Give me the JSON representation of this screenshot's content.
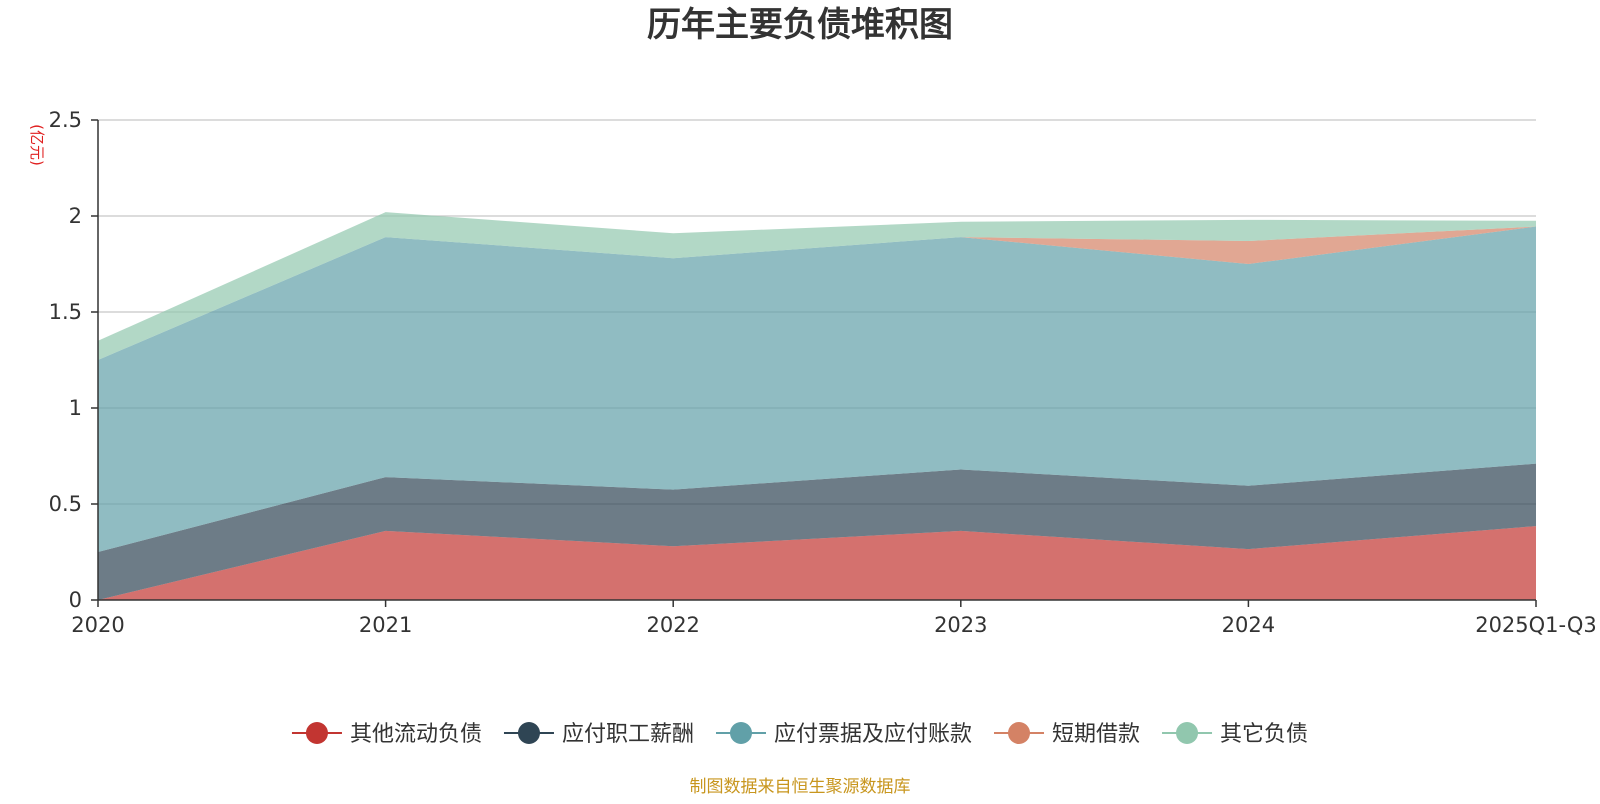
{
  "chart_data": {
    "type": "area",
    "stacked": true,
    "title": "历年主要负债堆积图",
    "unit_label": "(亿元)",
    "xlabel": "",
    "ylabel": "(亿元)",
    "categories": [
      "2020",
      "2021",
      "2022",
      "2023",
      "2024",
      "2025Q1-Q3"
    ],
    "ylim": [
      0,
      2.5
    ],
    "yticks": [
      "0",
      "0.5",
      "1",
      "1.5",
      "2",
      "2.5"
    ],
    "grid": true,
    "legend_position": "bottom",
    "series": [
      {
        "name": "其他流动负债",
        "color": "#c23531",
        "values": [
          0.0,
          0.36,
          0.28,
          0.36,
          0.265,
          0.385
        ]
      },
      {
        "name": "应付职工薪酬",
        "color": "#2f4554",
        "values": [
          0.25,
          0.28,
          0.295,
          0.32,
          0.33,
          0.325
        ]
      },
      {
        "name": "应付票据及应付账款",
        "color": "#61a0a8",
        "values": [
          1.0,
          1.25,
          1.205,
          1.21,
          1.155,
          1.235
        ]
      },
      {
        "name": "短期借款",
        "color": "#d48265",
        "values": [
          0.0,
          0.0,
          0.0,
          0.0,
          0.12,
          0.0
        ]
      },
      {
        "name": "其它负债",
        "color": "#91c7ae",
        "values": [
          0.1,
          0.13,
          0.13,
          0.08,
          0.11,
          0.03
        ]
      }
    ],
    "source": "制图数据来自恒生聚源数据库"
  }
}
